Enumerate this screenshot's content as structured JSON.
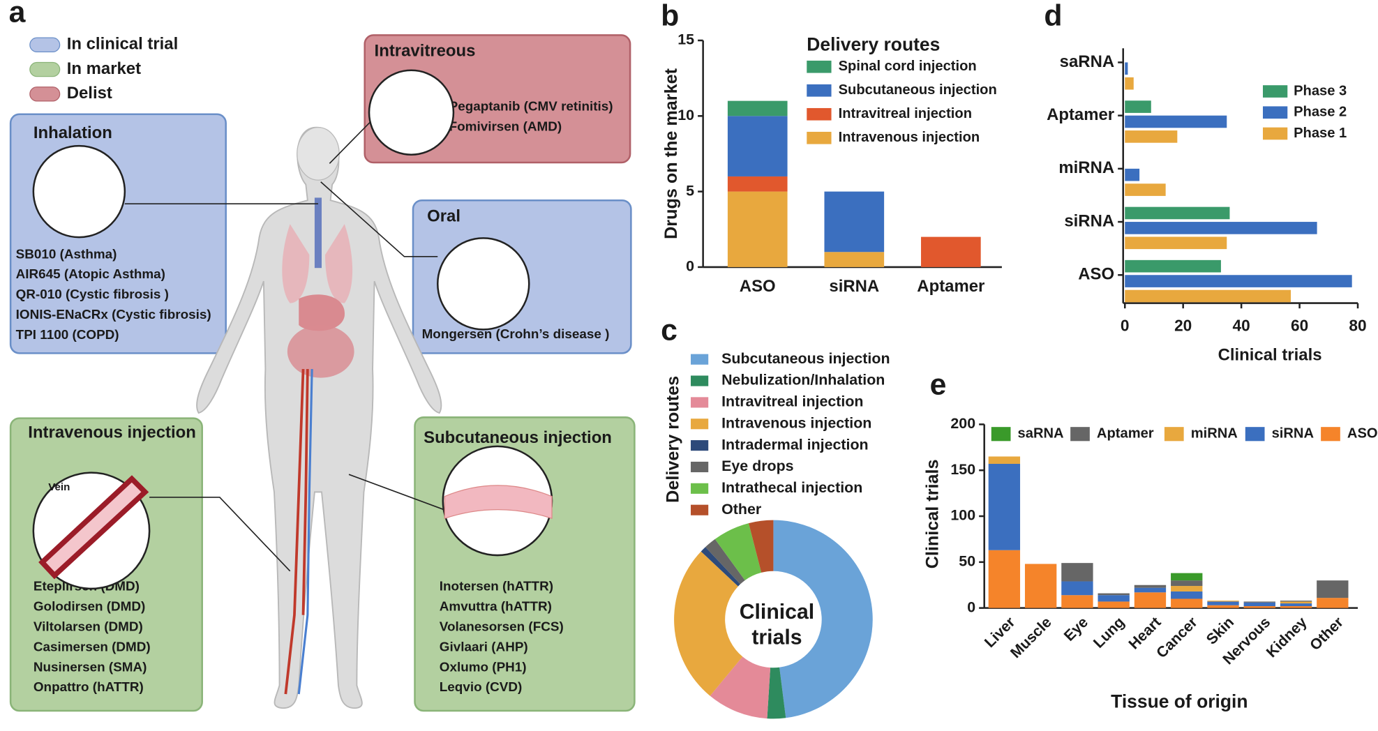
{
  "panel_a": {
    "panel_label": "a",
    "legend": [
      "In clinical trial",
      "In market",
      "Delist"
    ],
    "routes": [
      {
        "title": "Inhalation",
        "drugs": [
          "SB010 (Asthma)",
          "AIR645 (Atopic Asthma)",
          "QR-010 (Cystic fibrosis )",
          "IONIS-ENaCRx (Cystic fibrosis)",
          "TPI 1100 (COPD)"
        ]
      },
      {
        "title": "Intravitreous",
        "drugs": [
          "Pegaptanib (CMV retinitis)",
          "Fomivirsen (AMD)"
        ]
      },
      {
        "title": "Oral",
        "drugs": [
          "Mongersen (Crohn’s disease )"
        ]
      },
      {
        "title": "Intravenous injection",
        "drugs": [
          "Eteplirsen (DMD)",
          "Golodirsen (DMD)",
          "Viltolarsen (DMD)",
          "Casimersen (DMD)",
          "Nusinersen (SMA)",
          "Onpattro (hATTR)"
        ]
      },
      {
        "title": "Subcutaneous  injection",
        "drugs": [
          "Inotersen (hATTR)",
          "Amvuttra (hATTR)",
          "Volanesorsen (FCS)",
          "Givlaari (AHP)",
          "Oxlumo (PH1)",
          "Leqvio (CVD)"
        ]
      }
    ],
    "vein_label": "Vein"
  },
  "chart_data": [
    {
      "type": "bar",
      "stacked": true,
      "panel_label": "b",
      "legend_title": "Delivery routes",
      "y_label": "Drugs on the market",
      "categories": [
        "ASO",
        "siRNA",
        "Aptamer"
      ],
      "series": [
        {
          "name": "Spinal cord injection",
          "color": "#3a9a6a",
          "values": [
            1,
            0,
            0
          ]
        },
        {
          "name": "Subcutaneous injection",
          "color": "#3b6fbf",
          "values": [
            4,
            4,
            0
          ]
        },
        {
          "name": "Intravitreal injection",
          "color": "#e1582d",
          "values": [
            1,
            0,
            2
          ]
        },
        {
          "name": "Intravenous injection",
          "color": "#e8a83e",
          "values": [
            5,
            1,
            0
          ]
        }
      ],
      "ylim": [
        0,
        15
      ],
      "yticks": [
        0,
        5,
        10,
        15
      ]
    },
    {
      "type": "pie",
      "donut": true,
      "panel_label": "c",
      "y_label": "Delivery routes",
      "center_label": [
        "Clinical",
        "trials"
      ],
      "categories": [
        "Subcutaneous injection",
        "Nebulization/Inhalation",
        "Intravitreal injection",
        "Intravenous injection",
        "Intradermal injection",
        "Eye drops",
        "Intrathecal injection",
        "Other"
      ],
      "values": [
        48,
        3,
        10,
        26,
        1,
        2,
        6,
        4
      ],
      "colors": [
        "#6aa3d8",
        "#2e8b5e",
        "#e48a98",
        "#e8a83e",
        "#2d4a7a",
        "#666666",
        "#6cbf4a",
        "#b5502a"
      ]
    },
    {
      "type": "bar",
      "orientation": "horizontal",
      "panel_label": "d",
      "x_label": "Clinical trials",
      "categories": [
        "saRNA",
        "Aptamer",
        "miRNA",
        "siRNA",
        "ASO"
      ],
      "series": [
        {
          "name": "Phase 3",
          "color": "#3a9a6a",
          "values": [
            0,
            9,
            0,
            36,
            33
          ]
        },
        {
          "name": "Phase 2",
          "color": "#3b6fbf",
          "values": [
            1,
            35,
            5,
            66,
            78
          ]
        },
        {
          "name": "Phase 1",
          "color": "#e8a83e",
          "values": [
            3,
            18,
            14,
            35,
            57
          ]
        }
      ],
      "xlim": [
        0,
        80
      ],
      "xticks": [
        0,
        20,
        40,
        60,
        80
      ]
    },
    {
      "type": "bar",
      "stacked": true,
      "panel_label": "e",
      "y_label": "Clinical trials",
      "x_label": "Tissue of origin",
      "categories": [
        "Liver",
        "Muscle",
        "Eye",
        "Lung",
        "Heart",
        "Cancer",
        "Skin",
        "Nervous",
        "Kidney",
        "Other"
      ],
      "series": [
        {
          "name": "saRNA",
          "color": "#3a9a2a",
          "values": [
            0,
            0,
            0,
            0,
            0,
            8,
            0,
            0,
            0,
            0
          ]
        },
        {
          "name": "Aptamer",
          "color": "#666666",
          "values": [
            0,
            0,
            20,
            2,
            3,
            6,
            0,
            1,
            1,
            19
          ]
        },
        {
          "name": "miRNA",
          "color": "#e8a83e",
          "values": [
            8,
            0,
            0,
            0,
            0,
            6,
            1,
            0,
            2,
            0
          ]
        },
        {
          "name": "siRNA",
          "color": "#3b6fbf",
          "values": [
            94,
            0,
            15,
            7,
            5,
            8,
            4,
            4,
            3,
            0
          ]
        },
        {
          "name": "ASO",
          "color": "#f5842a",
          "values": [
            63,
            48,
            14,
            7,
            17,
            10,
            3,
            2,
            2,
            11
          ]
        }
      ],
      "ylim": [
        0,
        200
      ],
      "yticks": [
        0,
        50,
        100,
        150,
        200
      ]
    }
  ]
}
